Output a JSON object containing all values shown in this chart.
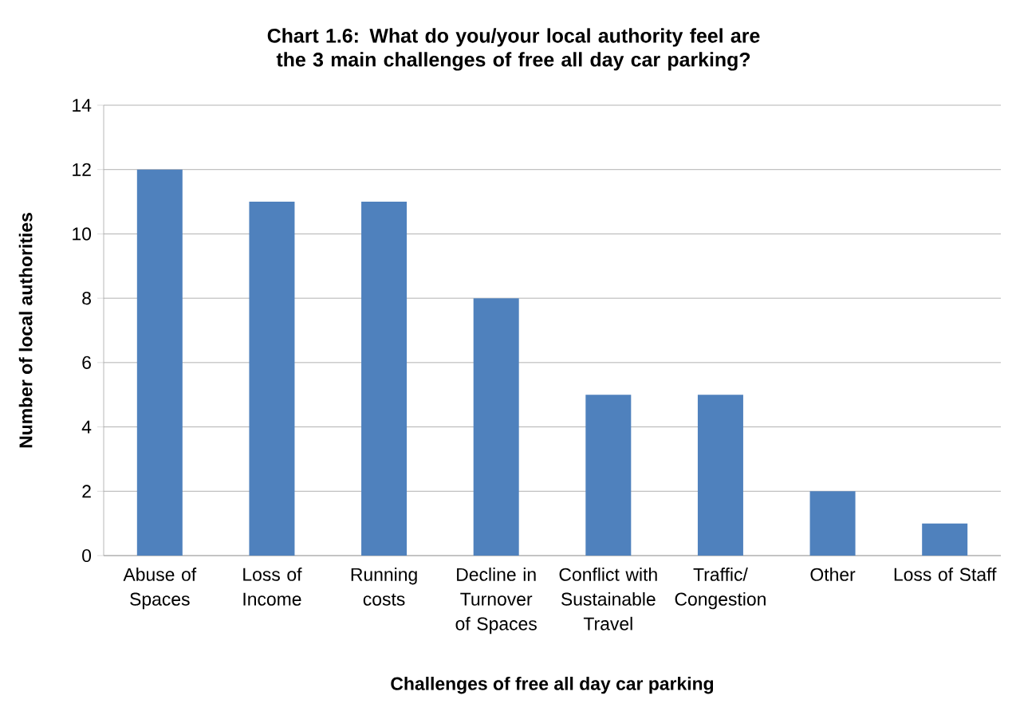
{
  "chart_data": {
    "type": "bar",
    "title": "Chart 1.6: What do you/your local authority feel are the 3 main challenges of free all day car parking?",
    "xlabel": "Challenges of free all day car parking",
    "ylabel": "Number of local authorities",
    "categories": [
      "Abuse of Spaces",
      "Loss of Income",
      "Running costs",
      "Decline in Turnover of Spaces",
      "Conflict with Sustainable Travel",
      "Traffic/ Congestion",
      "Other",
      "Loss of Staff"
    ],
    "values": [
      12,
      11,
      11,
      8,
      5,
      5,
      2,
      1
    ],
    "color": "#4f81bd",
    "ylim": [
      0,
      14
    ],
    "yticks": [
      0,
      2,
      4,
      6,
      8,
      10,
      12,
      14
    ],
    "grid": "y"
  }
}
